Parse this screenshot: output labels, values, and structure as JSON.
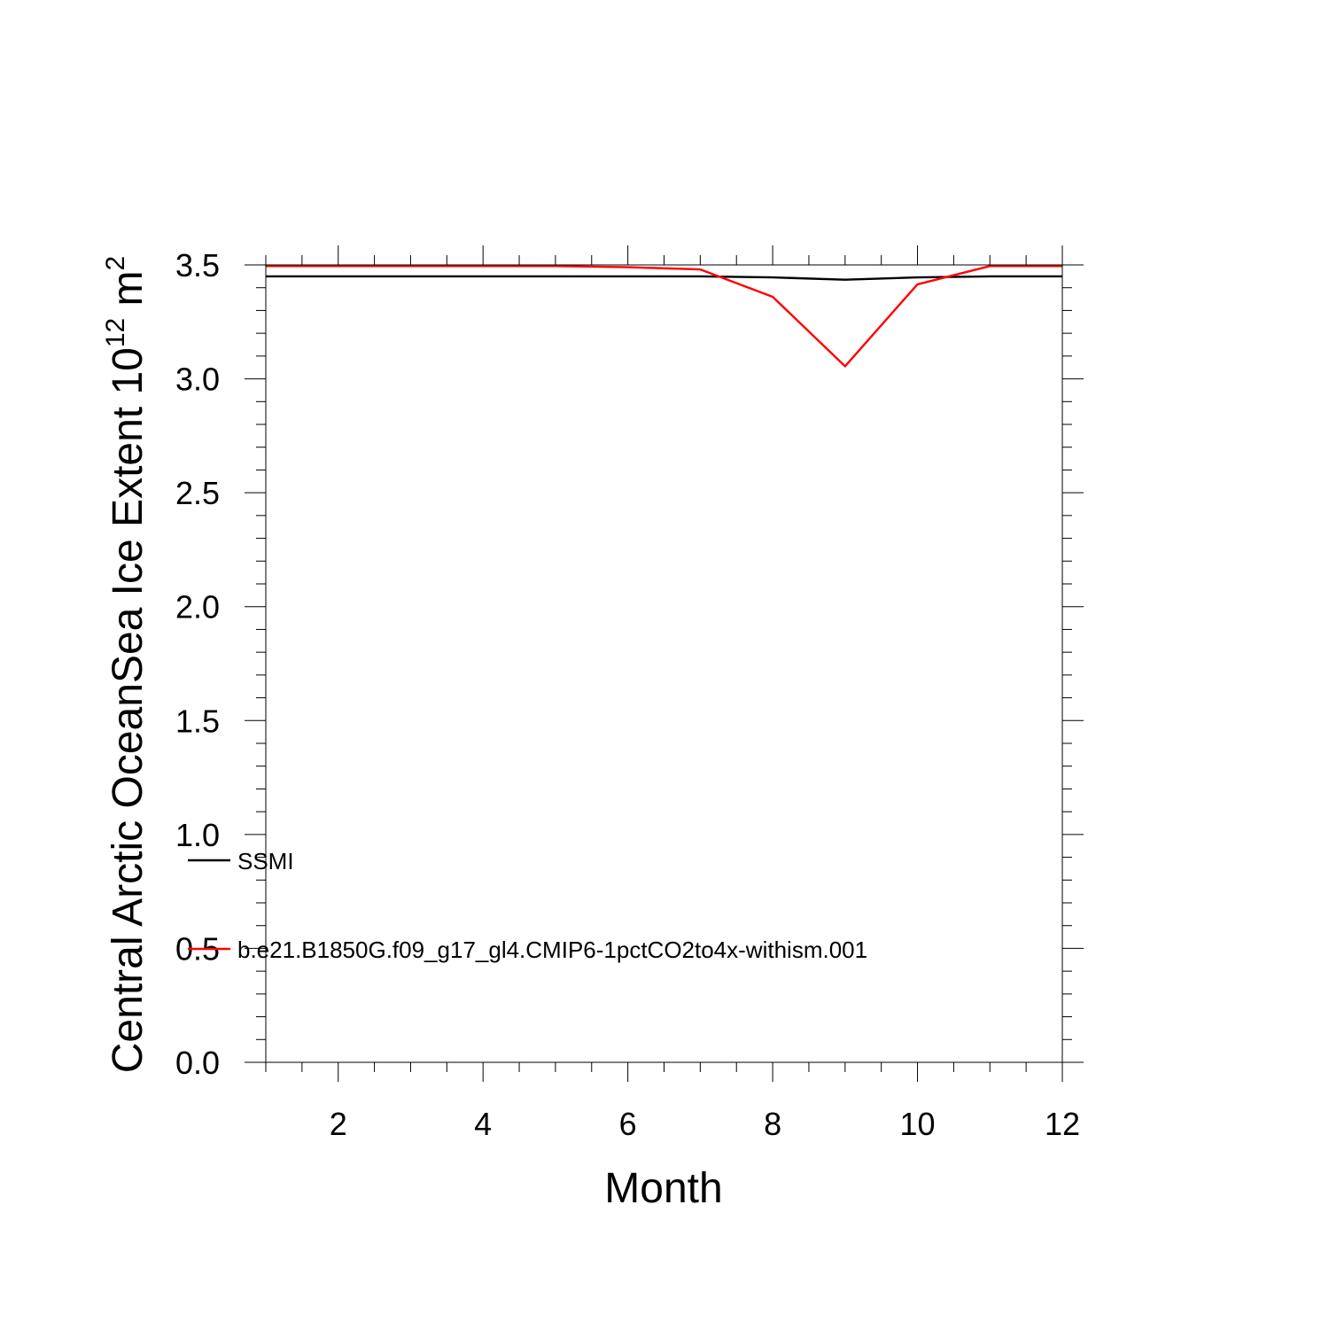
{
  "chart_data": {
    "type": "line",
    "title": "",
    "xlabel": "Month",
    "ylabel_main": "Central Arctic OceanSea Ice Extent 10",
    "ylabel_exp": "12",
    "ylabel_unit": " m",
    "ylabel_unit_exp": "2",
    "xlim": [
      1,
      12
    ],
    "ylim": [
      0,
      3.5
    ],
    "x_ticks": [
      2,
      4,
      6,
      8,
      10,
      12
    ],
    "x_tick_labels": [
      "2",
      "4",
      "6",
      "8",
      "10",
      "12"
    ],
    "y_ticks": [
      0,
      0.5,
      1,
      1.5,
      2,
      2.5,
      3,
      3.5
    ],
    "y_tick_labels": [
      "0.0",
      "0.5",
      "1.0",
      "1.5",
      "2.0",
      "2.5",
      "3.0",
      "3.5"
    ],
    "x": [
      1,
      2,
      3,
      4,
      5,
      6,
      7,
      8,
      9,
      10,
      11,
      12
    ],
    "series": [
      {
        "name": "SSMI",
        "color": "#000000",
        "values": [
          3.45,
          3.45,
          3.45,
          3.45,
          3.45,
          3.45,
          3.45,
          3.445,
          3.435,
          3.445,
          3.45,
          3.45
        ]
      },
      {
        "name": "b.e21.B1850G.f09_g17_gl4.CMIP6-1pctCO2to4x-withism.001",
        "color": "#ff0000",
        "values": [
          3.495,
          3.495,
          3.495,
          3.495,
          3.495,
          3.49,
          3.48,
          3.36,
          3.055,
          3.415,
          3.495,
          3.495
        ]
      }
    ],
    "grid": false,
    "legend_placement": "inside lower-left"
  }
}
